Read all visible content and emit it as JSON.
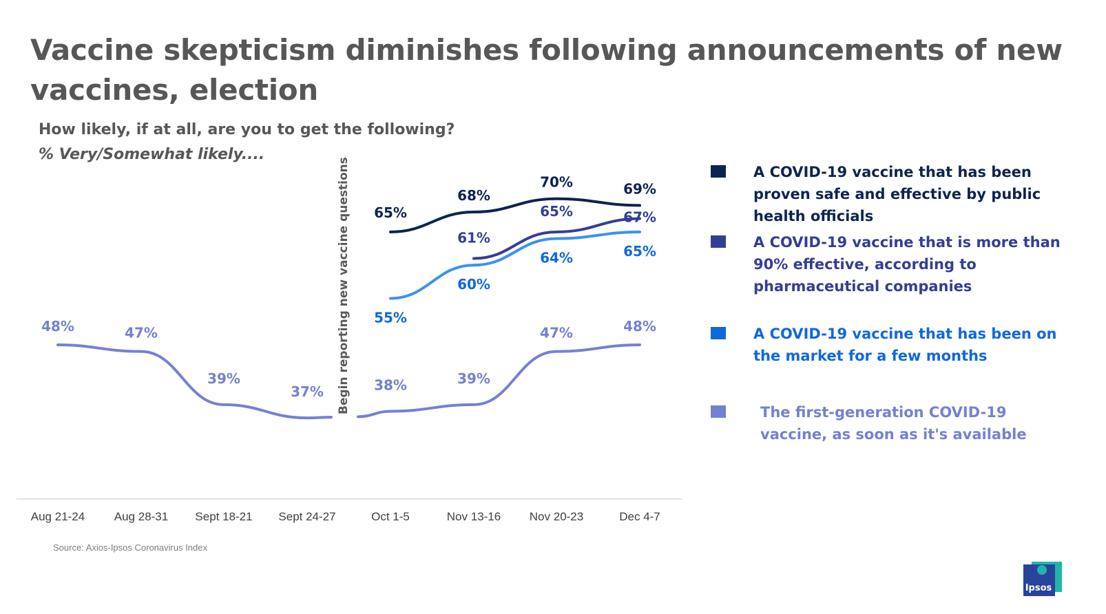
{
  "title": "Vaccine skepticism diminishes following announcements of new vaccines, election",
  "subtitle": "How likely, if at all, are you to get the following?",
  "subtitle2": "% Very/Somewhat likely....",
  "source": "Source: Axios-Ipsos Coronavirus Index",
  "logo_text": "Ipsos",
  "colors": {
    "title": "#575757",
    "proven": "#0d2451",
    "ninety": "#343e96",
    "months": "#1068dd",
    "months_line": "#3d91ee",
    "first_gen": "#7481d2",
    "logo_blue": "#27439c",
    "logo_teal": "#1fb6a9"
  },
  "chart_data": {
    "type": "line",
    "categories": [
      "Aug 21-24",
      "Aug 28-31",
      "Sept 18-21",
      "Sept 24-27",
      "Oct 1-5",
      "Nov 13-16",
      "Nov 20-23",
      "Dec 4-7"
    ],
    "annotation": "Begin reporting new vaccine questions",
    "series": [
      {
        "name": "A COVID-19 vaccine that has been proven safe and effective by public health officials",
        "values": [
          null,
          null,
          null,
          null,
          65,
          68,
          70,
          69
        ],
        "color_key": "proven"
      },
      {
        "name": "A COVID-19 vaccine that is more than 90% effective, according to pharmaceutical companies",
        "values": [
          null,
          null,
          null,
          null,
          null,
          61,
          65,
          67
        ],
        "color_key": "ninety"
      },
      {
        "name": "A COVID-19 vaccine that has been on the market for a few months",
        "values": [
          null,
          null,
          null,
          null,
          55,
          60,
          64,
          65
        ],
        "color_key": "months"
      },
      {
        "name": "The first-generation COVID-19 vaccine, as soon as it's available",
        "values": [
          48,
          47,
          39,
          37,
          38,
          39,
          47,
          48
        ],
        "color_key": "first_gen"
      }
    ]
  }
}
